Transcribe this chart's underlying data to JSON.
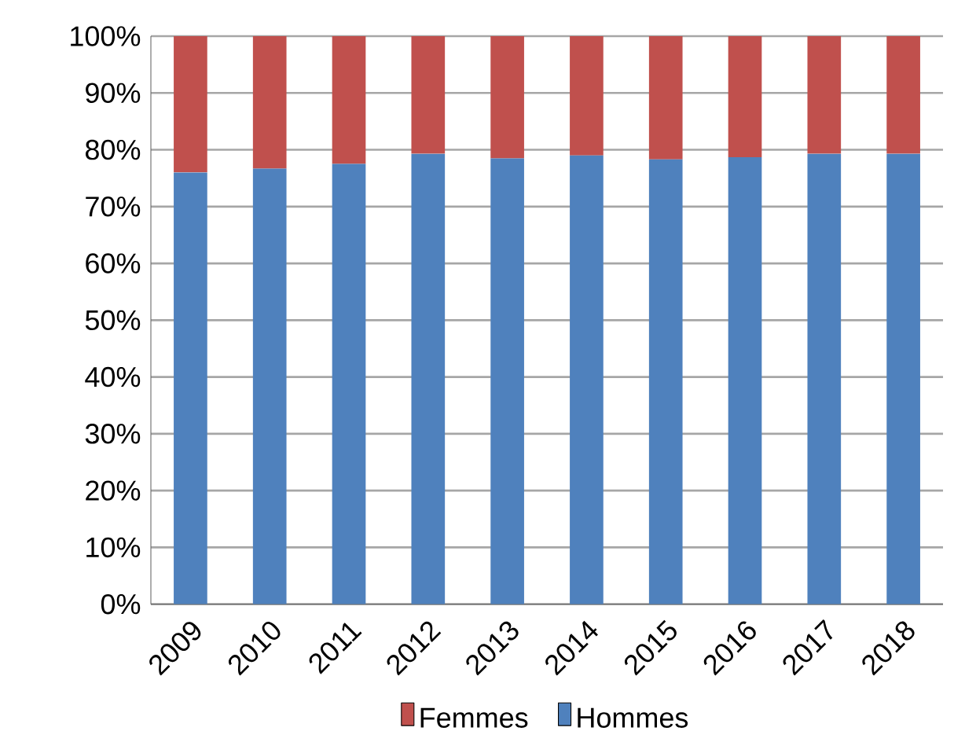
{
  "chart_data": {
    "type": "bar",
    "stacked": true,
    "categories": [
      "2009",
      "2010",
      "2011",
      "2012",
      "2013",
      "2014",
      "2015",
      "2016",
      "2017",
      "2018"
    ],
    "series": [
      {
        "name": "Hommes",
        "color": "#4f81bd",
        "values": [
          76,
          76.7,
          77.5,
          79.3,
          78.5,
          79,
          78.3,
          78.7,
          79.3,
          79.3
        ]
      },
      {
        "name": "Femmes",
        "color": "#c0504d",
        "values": [
          24,
          23.3,
          22.5,
          20.7,
          21.5,
          21,
          21.7,
          21.3,
          20.7,
          20.7
        ]
      }
    ],
    "ylim": [
      0,
      100
    ],
    "yticks": [
      {
        "value": 0,
        "label": "0%"
      },
      {
        "value": 10,
        "label": "10%"
      },
      {
        "value": 20,
        "label": "20%"
      },
      {
        "value": 30,
        "label": "30%"
      },
      {
        "value": 40,
        "label": "40%"
      },
      {
        "value": 50,
        "label": "50%"
      },
      {
        "value": 60,
        "label": "60%"
      },
      {
        "value": 70,
        "label": "70%"
      },
      {
        "value": 80,
        "label": "80%"
      },
      {
        "value": 90,
        "label": "90%"
      },
      {
        "value": 100,
        "label": "100%"
      }
    ],
    "grid": "y",
    "legend": "bottom"
  }
}
